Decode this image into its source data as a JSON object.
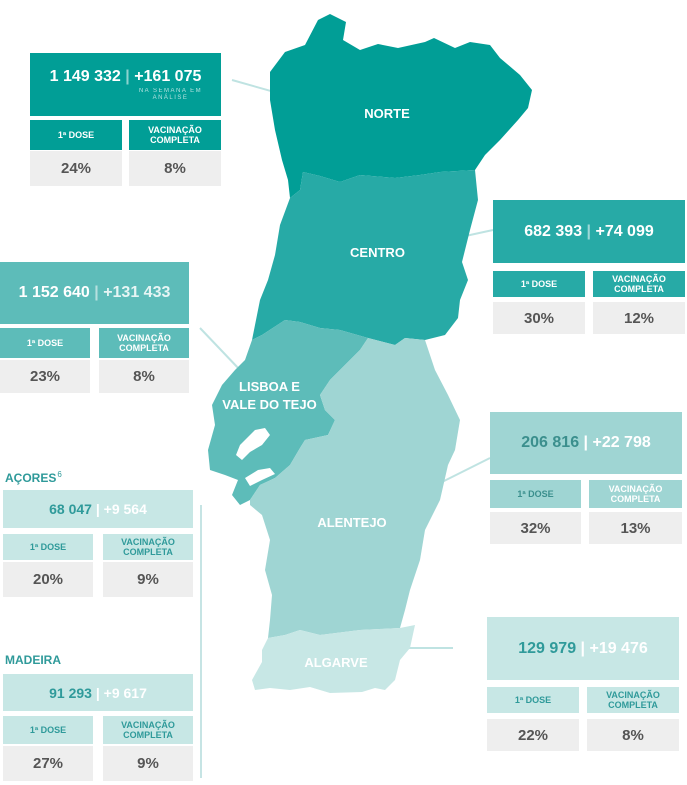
{
  "colors": {
    "norte": "#019e96",
    "centro": "#27aaa6",
    "lisboa": "#5dbcb9",
    "alentejo": "#9fd5d3",
    "algarve": "#c7e7e5",
    "dark_box": "#019e96",
    "mid_box": "#27aaa6",
    "light_box": "#9fd5d3",
    "pale_box": "#c7e7e5",
    "value_bg": "#eeeeee",
    "value_text": "#555555"
  },
  "labels": {
    "first_dose": "1ª DOSE",
    "complete": "VACINAÇÃO COMPLETA",
    "week_note": "NA SEMANA EM ANÁLISE"
  },
  "regions": {
    "norte": {
      "name": "NORTE",
      "total": "1 149 332",
      "weekly": "+161 075",
      "first_dose_pct": "24%",
      "complete_pct": "8%"
    },
    "centro": {
      "name": "CENTRO",
      "total": "682 393",
      "weekly": "+74 099",
      "first_dose_pct": "30%",
      "complete_pct": "12%"
    },
    "lisboa": {
      "name": "LISBOA E VALE DO TEJO",
      "total": "1 152 640",
      "weekly": "+131 433",
      "first_dose_pct": "23%",
      "complete_pct": "8%"
    },
    "alentejo": {
      "name": "ALENTEJO",
      "total": "206 816",
      "weekly": "+22 798",
      "first_dose_pct": "32%",
      "complete_pct": "13%"
    },
    "algarve": {
      "name": "ALGARVE",
      "total": "129 979",
      "weekly": "+19 476",
      "first_dose_pct": "22%",
      "complete_pct": "8%"
    },
    "acores": {
      "name": "AÇORES",
      "footnote": "6",
      "total": "68 047",
      "weekly": "+9 564",
      "first_dose_pct": "20%",
      "complete_pct": "9%"
    },
    "madeira": {
      "name": "MADEIRA",
      "total": "91 293",
      "weekly": "+9 617",
      "first_dose_pct": "27%",
      "complete_pct": "9%"
    }
  }
}
